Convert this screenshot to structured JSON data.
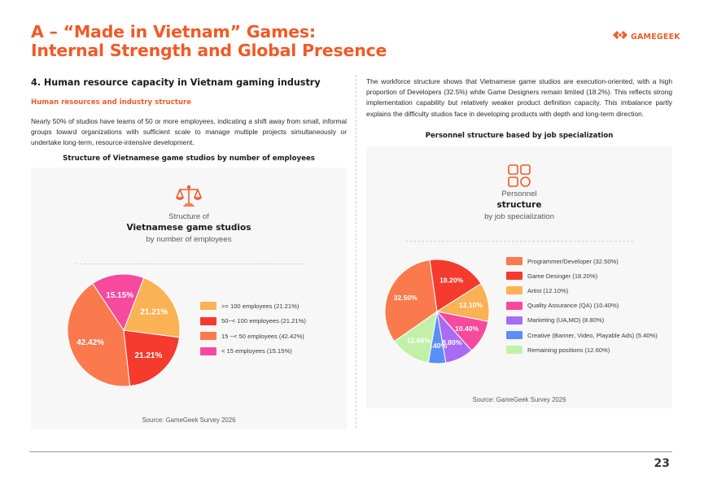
{
  "header": {
    "title_line1": "A – “Made in Vietnam” Games:",
    "title_line2": "Internal Strength and Global Presence",
    "brand": "GAMEGEEK",
    "brand_color": "#f05a28"
  },
  "left": {
    "heading": "4. Human resource capacity in Vietnam gaming industry",
    "subheading": "Human resources and industry structure",
    "paragraph": "Nearly 50% of studios have teams of 50 or more employees, indicating a shift away from small, informal groups toward organizations with sufficient scale to manage multiple projects simultaneously or undertake long-term, resource-intensive development.",
    "caption": "Structure of Vietnamese game studios by number of employees",
    "panel": {
      "icon": "scales-icon",
      "line1": "Structure of",
      "line2": "Vietnamese game studios",
      "line3": "by number of employees",
      "source": "Source: GameGeek Survey 2026"
    }
  },
  "right": {
    "paragraph": "The workforce structure shows that Vietnamese game studios are execution-oriented, with a high proportion of Developers (32.5%) while Game Designers remain limited (18.2%). This reflects strong implementation capability but relatively weaker product definition capacity. This imbalance partly explains the difficulty studios face in developing products with depth and long-term direction.",
    "caption": "Personnel structure based by job specialization",
    "panel": {
      "icon": "shapes-grid-icon",
      "line1": "Personnel",
      "line2": "structure",
      "line3": "by job specialization",
      "source": "Source: GameGeek Survey 2026"
    }
  },
  "chart_data": [
    {
      "type": "pie",
      "categories": [
        ">= 100 employees (21.21%)",
        "50~< 100 employees (21.21%)",
        "15 ~< 50 employees (42.42%)",
        "< 15 employees (15.15%)"
      ],
      "values": [
        21.21,
        21.21,
        42.42,
        15.15
      ],
      "data_labels": [
        "21.21%",
        "21.21%",
        "42.42%",
        "15.15%"
      ],
      "colors": [
        "#fbb254",
        "#f53a2e",
        "#fa7a4e",
        "#f7499e"
      ],
      "legend_position": "right"
    },
    {
      "type": "pie",
      "categories": [
        "Programmer/Developer (32.50%)",
        "Game Desinger (18.20%)",
        "Artist (12.10%)",
        "Quality Assurance (QA) (10.40%)",
        "Marketing (UA,MO) (8.80%)",
        "Creative (Banner, Video, Playable Ads) (5.40%)",
        "Remaining positions (12.60%)"
      ],
      "values": [
        32.5,
        18.2,
        12.1,
        10.4,
        8.8,
        5.4,
        12.6
      ],
      "data_labels": [
        "32.50%",
        "18.20%",
        "12.10%",
        "10.40%",
        "8.80%",
        "5.40%",
        "12.60%"
      ],
      "colors": [
        "#fa7a4e",
        "#f53a2e",
        "#fbb254",
        "#f7499e",
        "#a86cf2",
        "#5b8ff7",
        "#c3f0a8"
      ],
      "legend_position": "right"
    }
  ],
  "footer": {
    "page_number": "23"
  }
}
